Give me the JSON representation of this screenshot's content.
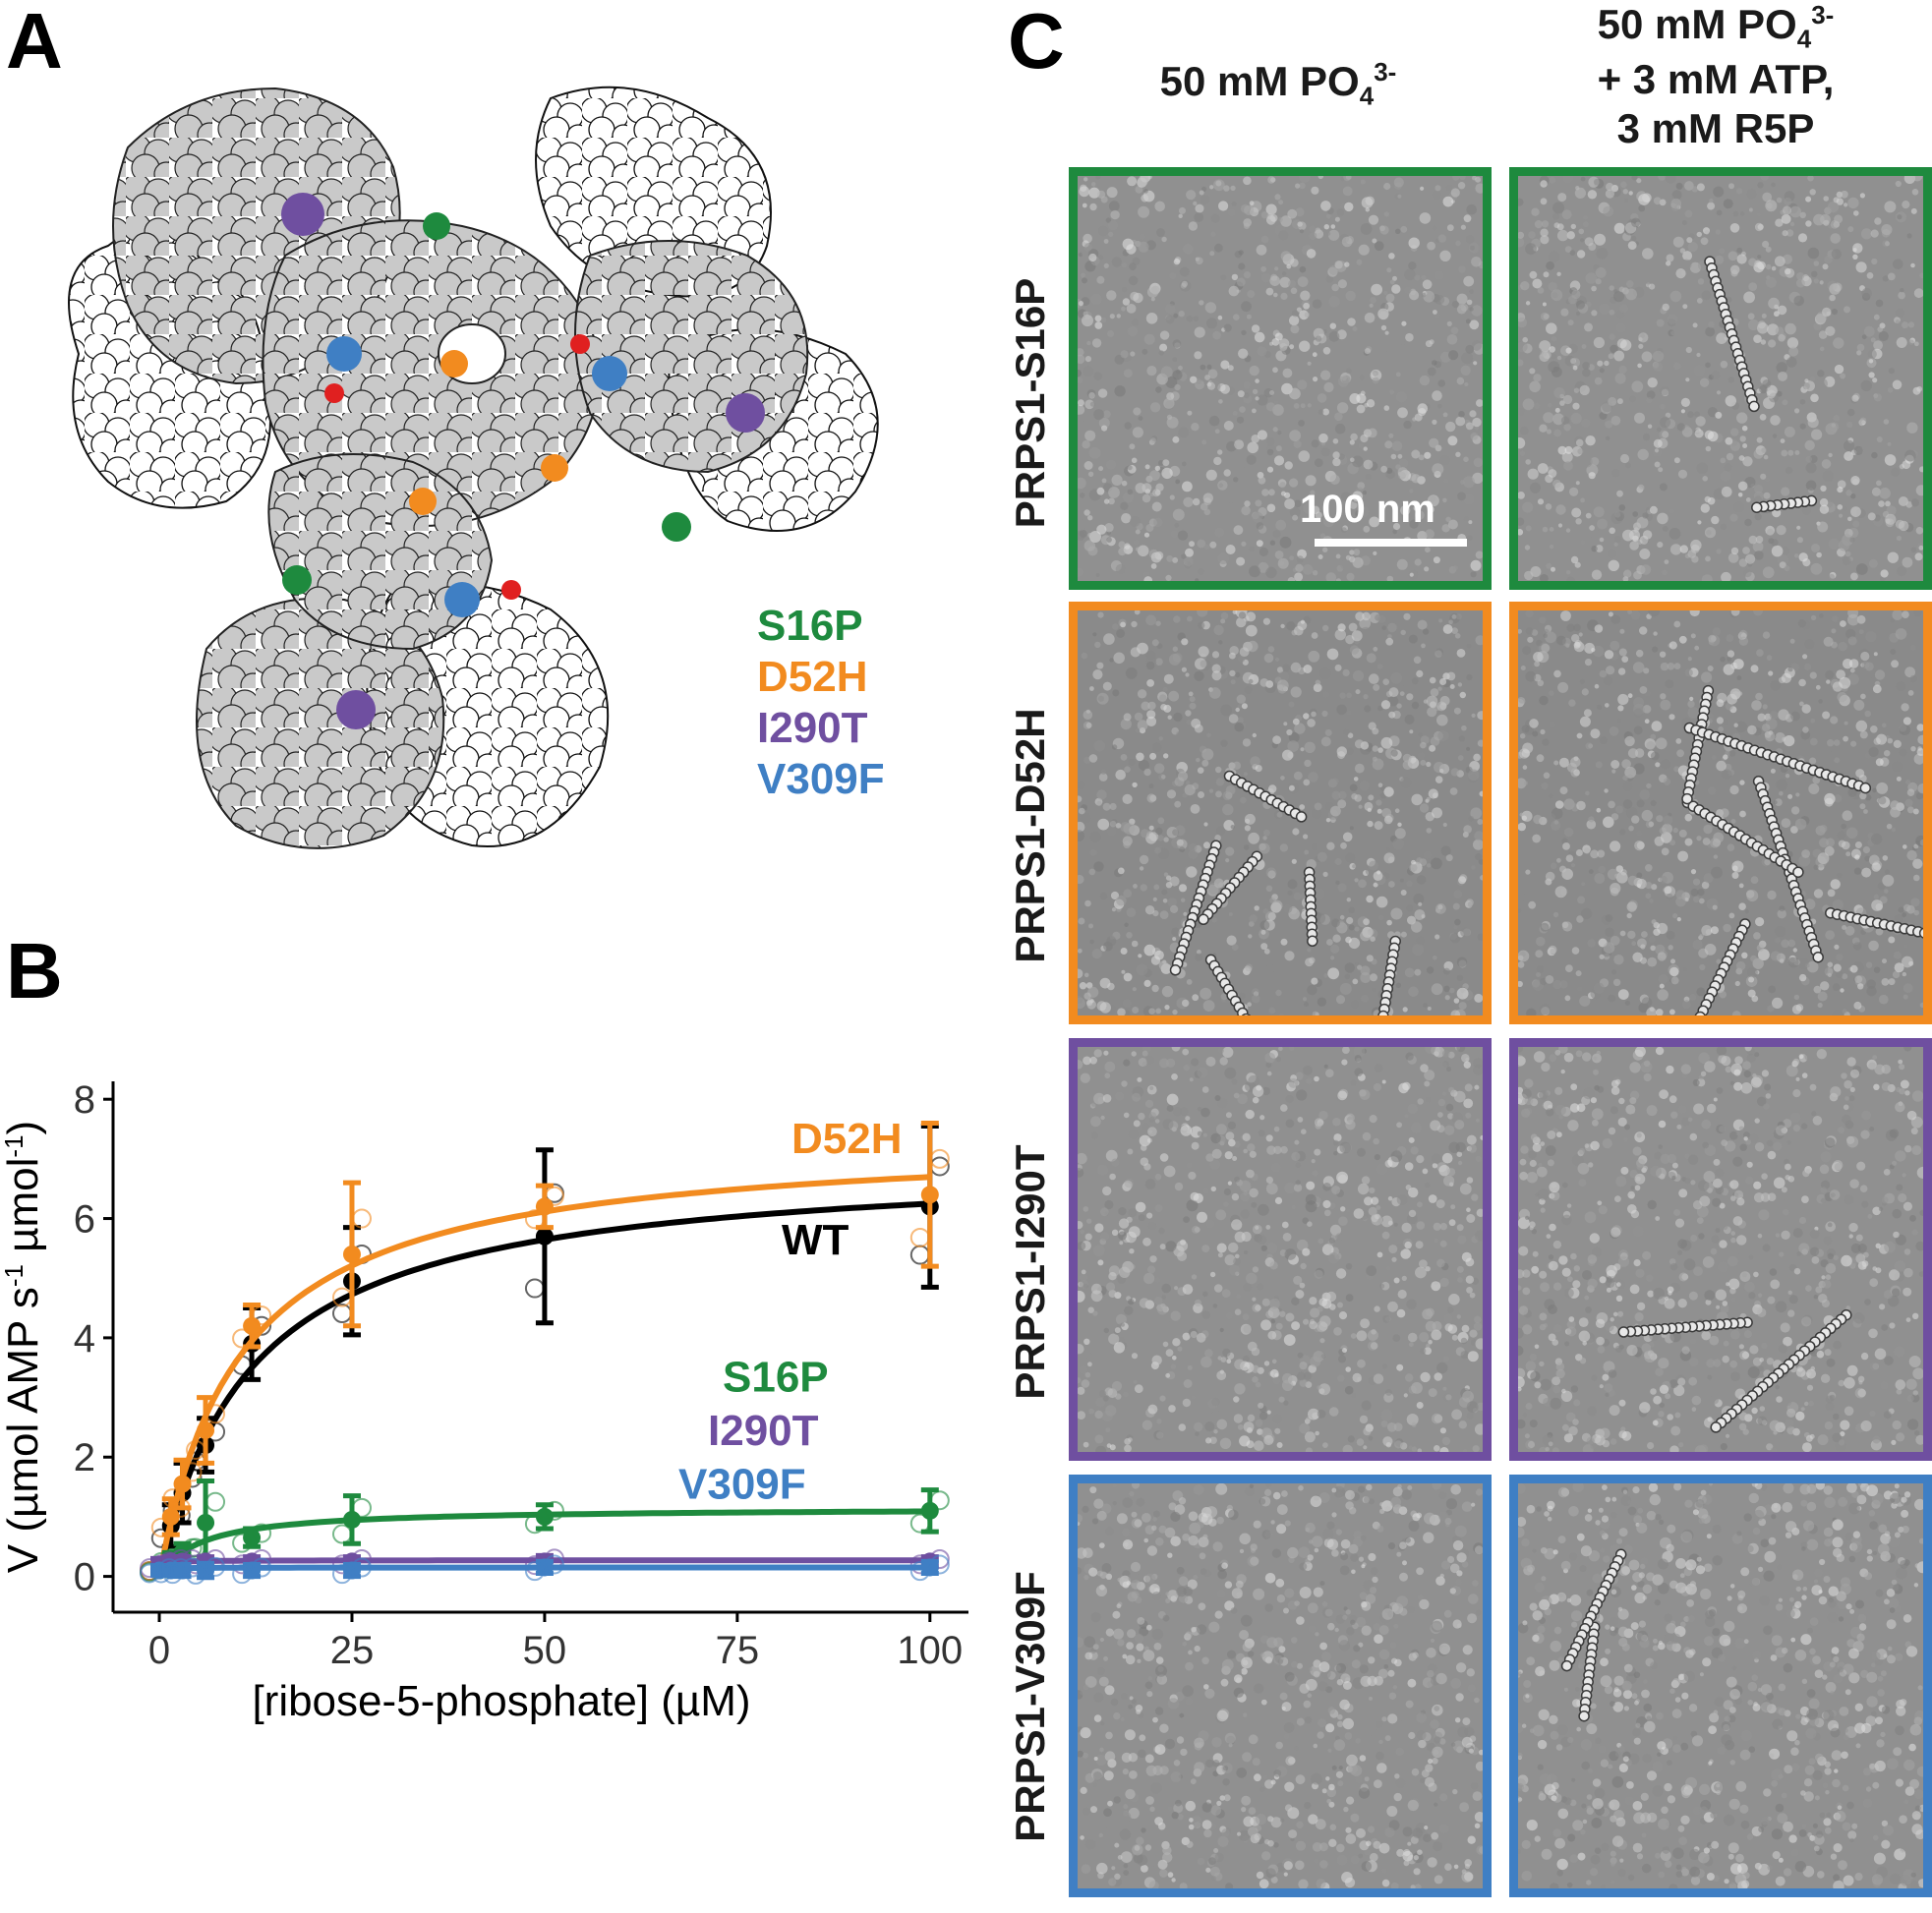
{
  "panels": {
    "a": {
      "letter": "A"
    },
    "b": {
      "letter": "B"
    },
    "c": {
      "letter": "C"
    }
  },
  "mutation_legend": [
    {
      "label": "S16P",
      "color": "#1e8a3e"
    },
    {
      "label": "D52H",
      "color": "#f28b1f"
    },
    {
      "label": "I290T",
      "color": "#6f4fa0"
    },
    {
      "label": "V309F",
      "color": "#3f7fc4"
    }
  ],
  "panel_c": {
    "column_headers": [
      {
        "line1": "50 mM PO",
        "sub": "4",
        "sup": "3-",
        "line2": "",
        "line3": ""
      },
      {
        "line1": "50 mM PO",
        "sub": "4",
        "sup": "3-",
        "line2": "+ 3 mM ATP,",
        "line3": "3 mM R5P"
      }
    ],
    "rows": [
      {
        "label": "PRPS1-S16P",
        "color": "#1e8a3e"
      },
      {
        "label": "PRPS1-D52H",
        "color": "#f28b1f"
      },
      {
        "label": "PRPS1-I290T",
        "color": "#6f4fa0"
      },
      {
        "label": "PRPS1-V309F",
        "color": "#3f7fc4"
      }
    ],
    "scale_bar": "100 nm"
  },
  "chart_data": {
    "type": "scatter",
    "title": "",
    "xlabel": "[ribose-5-phosphate] (µM)",
    "ylabel_main": "V (µmol AMP s",
    "ylabel_sup1": "-1",
    "ylabel_mid": " µmol",
    "ylabel_sup2": "-1",
    "ylabel_end": ")",
    "xlim": [
      -6,
      105
    ],
    "ylim": [
      -0.6,
      8.3
    ],
    "xticks": [
      0,
      25,
      50,
      75,
      100
    ],
    "yticks": [
      0,
      2,
      4,
      6,
      8
    ],
    "x": [
      0,
      1.5,
      3,
      6,
      12,
      25,
      50,
      100
    ],
    "series": [
      {
        "name": "WT",
        "color": "#000000",
        "mean": [
          0.15,
          0.85,
          1.4,
          2.2,
          3.9,
          4.95,
          5.7,
          6.2
        ],
        "err": [
          0.1,
          0.35,
          0.5,
          0.45,
          0.6,
          0.9,
          1.45,
          1.35
        ],
        "vmax": 7.0,
        "km": 12.0
      },
      {
        "name": "D52H",
        "color": "#f28b1f",
        "mean": [
          0.15,
          1.0,
          1.55,
          2.45,
          4.2,
          5.4,
          6.2,
          6.4
        ],
        "err": [
          0.1,
          0.3,
          0.4,
          0.55,
          0.35,
          1.2,
          0.35,
          1.2
        ],
        "vmax": 7.4,
        "km": 10.5
      },
      {
        "name": "S16P",
        "color": "#1e8a3e",
        "mean": [
          0.1,
          0.3,
          0.4,
          0.9,
          0.65,
          0.95,
          1.0,
          1.1
        ],
        "err": [
          0.05,
          0.1,
          0.15,
          0.7,
          0.15,
          0.4,
          0.2,
          0.35
        ],
        "vmax": 1.15,
        "km": 5.5
      },
      {
        "name": "I290T",
        "color": "#6f4fa0",
        "mean": [
          0.2,
          0.25,
          0.25,
          0.25,
          0.25,
          0.25,
          0.25,
          0.25
        ],
        "err": [
          0.1,
          0.08,
          0.08,
          0.08,
          0.08,
          0.08,
          0.1,
          0.08
        ],
        "vmax": 0.27,
        "km": 0.3
      },
      {
        "name": "V309F",
        "color": "#3f7fc4",
        "mean": [
          0.1,
          0.1,
          0.1,
          0.1,
          0.1,
          0.1,
          0.15,
          0.15
        ],
        "err": [
          0.08,
          0.08,
          0.1,
          0.12,
          0.1,
          0.1,
          0.1,
          0.1
        ],
        "vmax": 0.15,
        "km": 0.3
      }
    ],
    "curve_labels": [
      {
        "series": "D52H",
        "text": "D52H",
        "color": "#f28b1f"
      },
      {
        "series": "WT",
        "text": "WT",
        "color": "#000000"
      },
      {
        "series": "S16P",
        "text": "S16P",
        "color": "#1e8a3e"
      },
      {
        "series": "I290T",
        "text": "I290T",
        "color": "#6f4fa0"
      },
      {
        "series": "V309F",
        "text": "V309F",
        "color": "#3f7fc4"
      }
    ]
  }
}
